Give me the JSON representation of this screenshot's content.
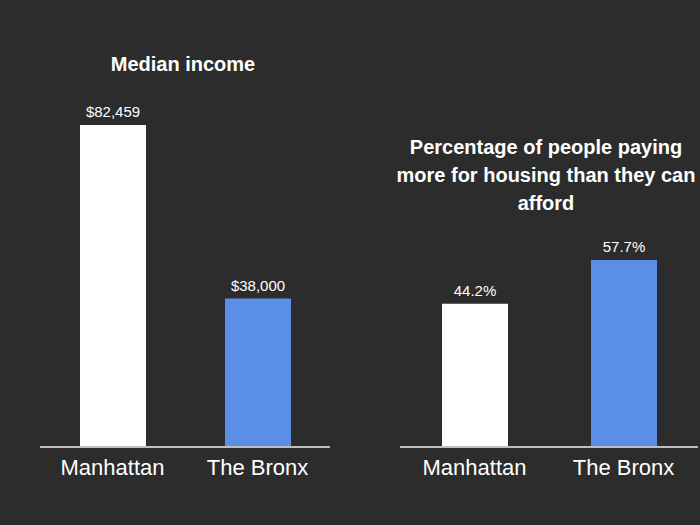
{
  "chart_data": [
    {
      "type": "bar",
      "title": "Median income",
      "categories": [
        "Manhattan",
        "The Bronx"
      ],
      "values": [
        82459,
        38000
      ],
      "value_labels": [
        "$82,459",
        "$38,000"
      ],
      "colors": [
        "#ffffff",
        "#5b8ee6"
      ],
      "data_labels": true,
      "tick_labels": "x"
    },
    {
      "type": "bar",
      "title": "Percentage of people paying more for housing than they can afford",
      "categories": [
        "Manhattan",
        "The Bronx"
      ],
      "values": [
        44.2,
        57.7
      ],
      "value_labels": [
        "44.2%",
        "57.7%"
      ],
      "colors": [
        "#ffffff",
        "#5b8ee6"
      ],
      "data_labels": true,
      "tick_labels": "x"
    }
  ]
}
